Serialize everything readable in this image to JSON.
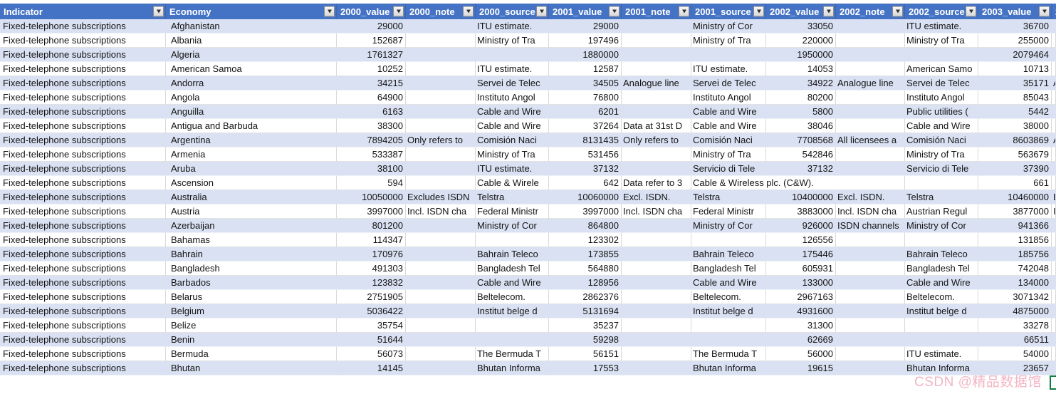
{
  "table": {
    "indicator_label": "Fixed-telephone subscriptions",
    "header": {
      "columns": [
        {
          "key": "indicator",
          "label": "Indicator",
          "filter": true
        },
        {
          "key": "economy",
          "label": "Economy",
          "filter": true
        },
        {
          "key": "v00",
          "label": "2000_value",
          "filter": true
        },
        {
          "key": "n00",
          "label": "2000_note",
          "filter": true
        },
        {
          "key": "s00",
          "label": "2000_source",
          "filter": true
        },
        {
          "key": "v01",
          "label": "2001_value",
          "filter": true
        },
        {
          "key": "n01",
          "label": "2001_note",
          "filter": true
        },
        {
          "key": "s01",
          "label": "2001_source",
          "filter": true
        },
        {
          "key": "v02",
          "label": "2002_value",
          "filter": true
        },
        {
          "key": "n02",
          "label": "2002_note",
          "filter": true
        },
        {
          "key": "s02",
          "label": "2002_source",
          "filter": true
        },
        {
          "key": "v03",
          "label": "2003_value",
          "filter": true
        },
        {
          "key": "edge",
          "label": "2",
          "filter": false
        }
      ]
    },
    "rows": [
      {
        "economy": "Afghanistan",
        "v00": "29000",
        "n00": "",
        "s00": "ITU estimate.",
        "v01": "29000",
        "n01": "",
        "s01": "Ministry of Cor",
        "v02": "33050",
        "n02": "",
        "s02": "ITU estimate.",
        "v03": "36700",
        "edge": ""
      },
      {
        "economy": "Albania",
        "v00": "152687",
        "n00": "",
        "s00": "Ministry of Tra",
        "v01": "197496",
        "n01": "",
        "s01": "Ministry of Tra",
        "v02": "220000",
        "n02": "",
        "s02": "Ministry of Tra",
        "v03": "255000",
        "edge": ""
      },
      {
        "economy": "Algeria",
        "v00": "1761327",
        "n00": "",
        "s00": "",
        "v01": "1880000",
        "n01": "",
        "s01": "",
        "v02": "1950000",
        "n02": "",
        "s02": "",
        "v03": "2079464",
        "edge": ""
      },
      {
        "economy": "American Samoa",
        "v00": "10252",
        "n00": "",
        "s00": "ITU estimate.",
        "v01": "12587",
        "n01": "",
        "s01": "ITU estimate.",
        "v02": "14053",
        "n02": "",
        "s02": "American Samo",
        "v03": "10713",
        "edge": ""
      },
      {
        "economy": "Andorra",
        "v00": "34215",
        "n00": "",
        "s00": "Servei de Telec",
        "v01": "34505",
        "n01": "Analogue line",
        "s01": "Servei de Telec",
        "v02": "34922",
        "n02": "Analogue line",
        "s02": "Servei de Telec",
        "v03": "35171",
        "edge": "A"
      },
      {
        "economy": "Angola",
        "v00": "64900",
        "n00": "",
        "s00": "Instituto Angol",
        "v01": "76800",
        "n01": "",
        "s01": "Instituto Angol",
        "v02": "80200",
        "n02": "",
        "s02": "Instituto Angol",
        "v03": "85043",
        "edge": ""
      },
      {
        "economy": "Anguilla",
        "v00": "6163",
        "n00": "",
        "s00": "Cable and Wire",
        "v01": "6201",
        "n01": "",
        "s01": "Cable and Wire",
        "v02": "5800",
        "n02": "",
        "s02": "Public utilities (",
        "v03": "5442",
        "edge": ""
      },
      {
        "economy": "Antigua and Barbuda",
        "v00": "38300",
        "n00": "",
        "s00": "Cable and Wire",
        "v01": "37264",
        "n01": "Data at 31st D",
        "s01": "Cable and Wire",
        "v02": "38046",
        "n02": "",
        "s02": "Cable and Wire",
        "v03": "38000",
        "edge": ""
      },
      {
        "economy": "Argentina",
        "v00": "7894205",
        "n00": "Only refers to",
        "s00": "Comisión Naci",
        "v01": "8131435",
        "n01": "Only refers to",
        "s01": "Comisión Naci",
        "v02": "7708568",
        "n02": "All licensees a",
        "s02": "Comisión Naci",
        "v03": "8603869",
        "edge": "A"
      },
      {
        "economy": "Armenia",
        "v00": "533387",
        "n00": "",
        "s00": "Ministry of Tra",
        "v01": "531456",
        "n01": "",
        "s01": "Ministry of Tra",
        "v02": "542846",
        "n02": "",
        "s02": "Ministry of Tra",
        "v03": "563679",
        "edge": ""
      },
      {
        "economy": "Aruba",
        "v00": "38100",
        "n00": "",
        "s00": "ITU estimate.",
        "v01": "37132",
        "n01": "",
        "s01": "Servicio di Tele",
        "v02": "37132",
        "n02": "",
        "s02": "Servicio di Tele",
        "v03": "37390",
        "edge": ""
      },
      {
        "economy": "Ascension",
        "v00": "594",
        "n00": "",
        "s00": "Cable & Wirele",
        "v01": "642",
        "n01": "Data refer to 3",
        "s01": "Cable & Wireless plc. (C&W).",
        "v02": "",
        "n02": "",
        "s02": "",
        "v03": "661",
        "edge": "",
        "spill": true
      },
      {
        "economy": "Australia",
        "v00": "10050000",
        "n00": "Excludes ISDN",
        "s00": "Telstra",
        "v01": "10060000",
        "n01": "Excl. ISDN.",
        "s01": "Telstra",
        "v02": "10400000",
        "n02": "Excl. ISDN.",
        "s02": "Telstra",
        "v03": "10460000",
        "edge": "E"
      },
      {
        "economy": "Austria",
        "v00": "3997000",
        "n00": "Incl. ISDN cha",
        "s00": "Federal Ministr",
        "v01": "3997000",
        "n01": "Incl. ISDN cha",
        "s01": "Federal Ministr",
        "v02": "3883000",
        "n02": "Incl. ISDN cha",
        "s02": "Austrian Regul",
        "v03": "3877000",
        "edge": "I"
      },
      {
        "economy": "Azerbaijan",
        "v00": "801200",
        "n00": "",
        "s00": "Ministry of Cor",
        "v01": "864800",
        "n01": "",
        "s01": "Ministry of Cor",
        "v02": "926000",
        "n02": "ISDN channels",
        "s02": "Ministry of Cor",
        "v03": "941366",
        "edge": ""
      },
      {
        "economy": "Bahamas",
        "v00": "114347",
        "n00": "",
        "s00": "",
        "v01": "123302",
        "n01": "",
        "s01": "",
        "v02": "126556",
        "n02": "",
        "s02": "",
        "v03": "131856",
        "edge": ""
      },
      {
        "economy": "Bahrain",
        "v00": "170976",
        "n00": "",
        "s00": "Bahrain Teleco",
        "v01": "173855",
        "n01": "",
        "s01": "Bahrain Teleco",
        "v02": "175446",
        "n02": "",
        "s02": "Bahrain Teleco",
        "v03": "185756",
        "edge": ""
      },
      {
        "economy": "Bangladesh",
        "v00": "491303",
        "n00": "",
        "s00": "Bangladesh Tel",
        "v01": "564880",
        "n01": "",
        "s01": "Bangladesh Tel",
        "v02": "605931",
        "n02": "",
        "s02": "Bangladesh Tel",
        "v03": "742048",
        "edge": ""
      },
      {
        "economy": "Barbados",
        "v00": "123832",
        "n00": "",
        "s00": "Cable and Wire",
        "v01": "128956",
        "n01": "",
        "s01": "Cable and Wire",
        "v02": "133000",
        "n02": "",
        "s02": "Cable and Wire",
        "v03": "134000",
        "edge": ""
      },
      {
        "economy": "Belarus",
        "v00": "2751905",
        "n00": "",
        "s00": "Beltelecom.",
        "v01": "2862376",
        "n01": "",
        "s01": "Beltelecom.",
        "v02": "2967163",
        "n02": "",
        "s02": "Beltelecom.",
        "v03": "3071342",
        "edge": ""
      },
      {
        "economy": "Belgium",
        "v00": "5036422",
        "n00": "",
        "s00": "Institut belge d",
        "v01": "5131694",
        "n01": "",
        "s01": "Institut belge d",
        "v02": "4931600",
        "n02": "",
        "s02": "Institut belge d",
        "v03": "4875000",
        "edge": ""
      },
      {
        "economy": "Belize",
        "v00": "35754",
        "n00": "",
        "s00": "",
        "v01": "35237",
        "n01": "",
        "s01": "",
        "v02": "31300",
        "n02": "",
        "s02": "",
        "v03": "33278",
        "edge": ""
      },
      {
        "economy": "Benin",
        "v00": "51644",
        "n00": "",
        "s00": "",
        "v01": "59298",
        "n01": "",
        "s01": "",
        "v02": "62669",
        "n02": "",
        "s02": "",
        "v03": "66511",
        "edge": ""
      },
      {
        "economy": "Bermuda",
        "v00": "56073",
        "n00": "",
        "s00": "The Bermuda T",
        "v01": "56151",
        "n01": "",
        "s01": "The Bermuda T",
        "v02": "56000",
        "n02": "",
        "s02": "ITU estimate.",
        "v03": "54000",
        "edge": ""
      },
      {
        "economy": "Bhutan",
        "v00": "14145",
        "n00": "",
        "s00": "Bhutan Informa",
        "v01": "17553",
        "n01": "",
        "s01": "Bhutan Informa",
        "v02": "19615",
        "n02": "",
        "s02": "Bhutan Informa",
        "v03": "23657",
        "edge": ""
      }
    ]
  },
  "watermark": {
    "text": "CSDN @精品数据馆"
  },
  "colors": {
    "header_bg": "#4472C4",
    "band_row": "#D9E1F2",
    "selection_border": "#107C41",
    "watermark_pink": "#F0A3B6"
  }
}
